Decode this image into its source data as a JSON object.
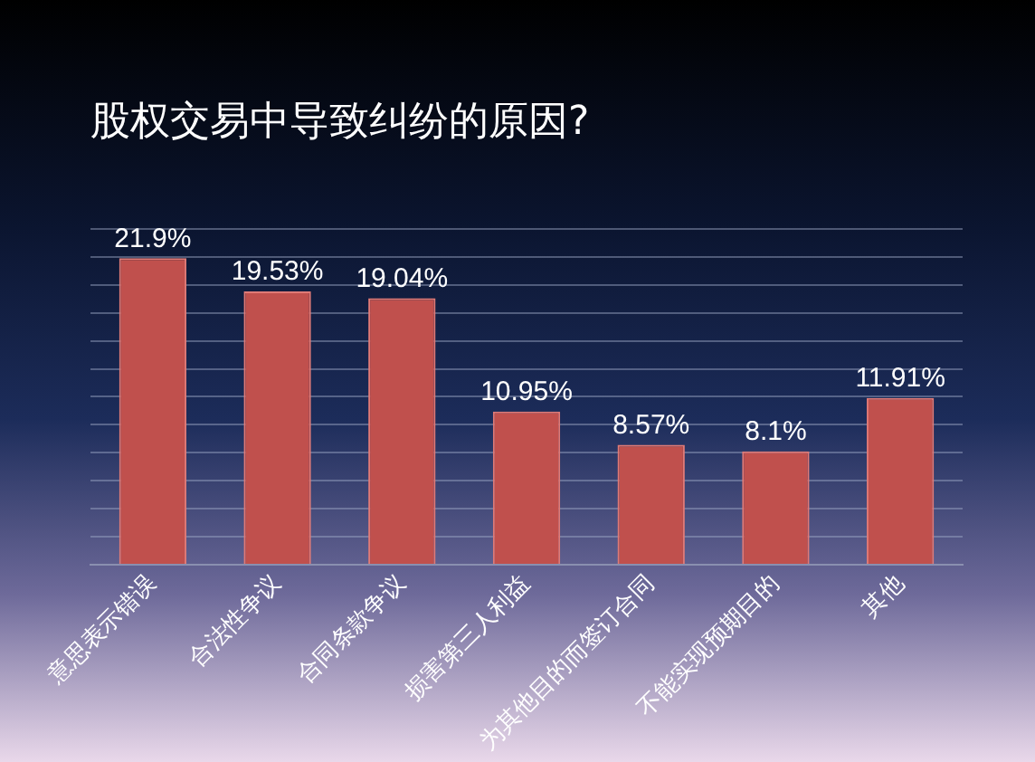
{
  "chart_data": {
    "type": "bar",
    "title": "股权交易中导致纠纷的原因?",
    "categories": [
      "意思表示错误",
      "合法性争议",
      "合同条款争议",
      "损害第三人利益",
      "为其他目的而签订合同",
      "不能实现预期目的",
      "其他"
    ],
    "values": [
      21.9,
      19.53,
      19.04,
      10.95,
      8.57,
      8.1,
      11.91
    ],
    "value_labels": [
      "21.9%",
      "19.53%",
      "19.04%",
      "10.95%",
      "8.57%",
      "8.1%",
      "11.91%"
    ],
    "color": "#c0504d",
    "ylim": [
      0,
      24
    ],
    "yticks": [
      {
        "value": 0,
        "label": null
      },
      {
        "value": 2,
        "label": null
      },
      {
        "value": 4,
        "label": null
      },
      {
        "value": 6,
        "label": null
      },
      {
        "value": 8,
        "label": null
      },
      {
        "value": 10,
        "label": null
      },
      {
        "value": 12,
        "label": null
      },
      {
        "value": 14,
        "label": null
      },
      {
        "value": 16,
        "label": null
      },
      {
        "value": 18,
        "label": null
      },
      {
        "value": 20,
        "label": null
      },
      {
        "value": 22,
        "label": null
      },
      {
        "value": 24,
        "label": null
      }
    ],
    "grid": "y",
    "tick_labels": "x",
    "legend": false
  }
}
